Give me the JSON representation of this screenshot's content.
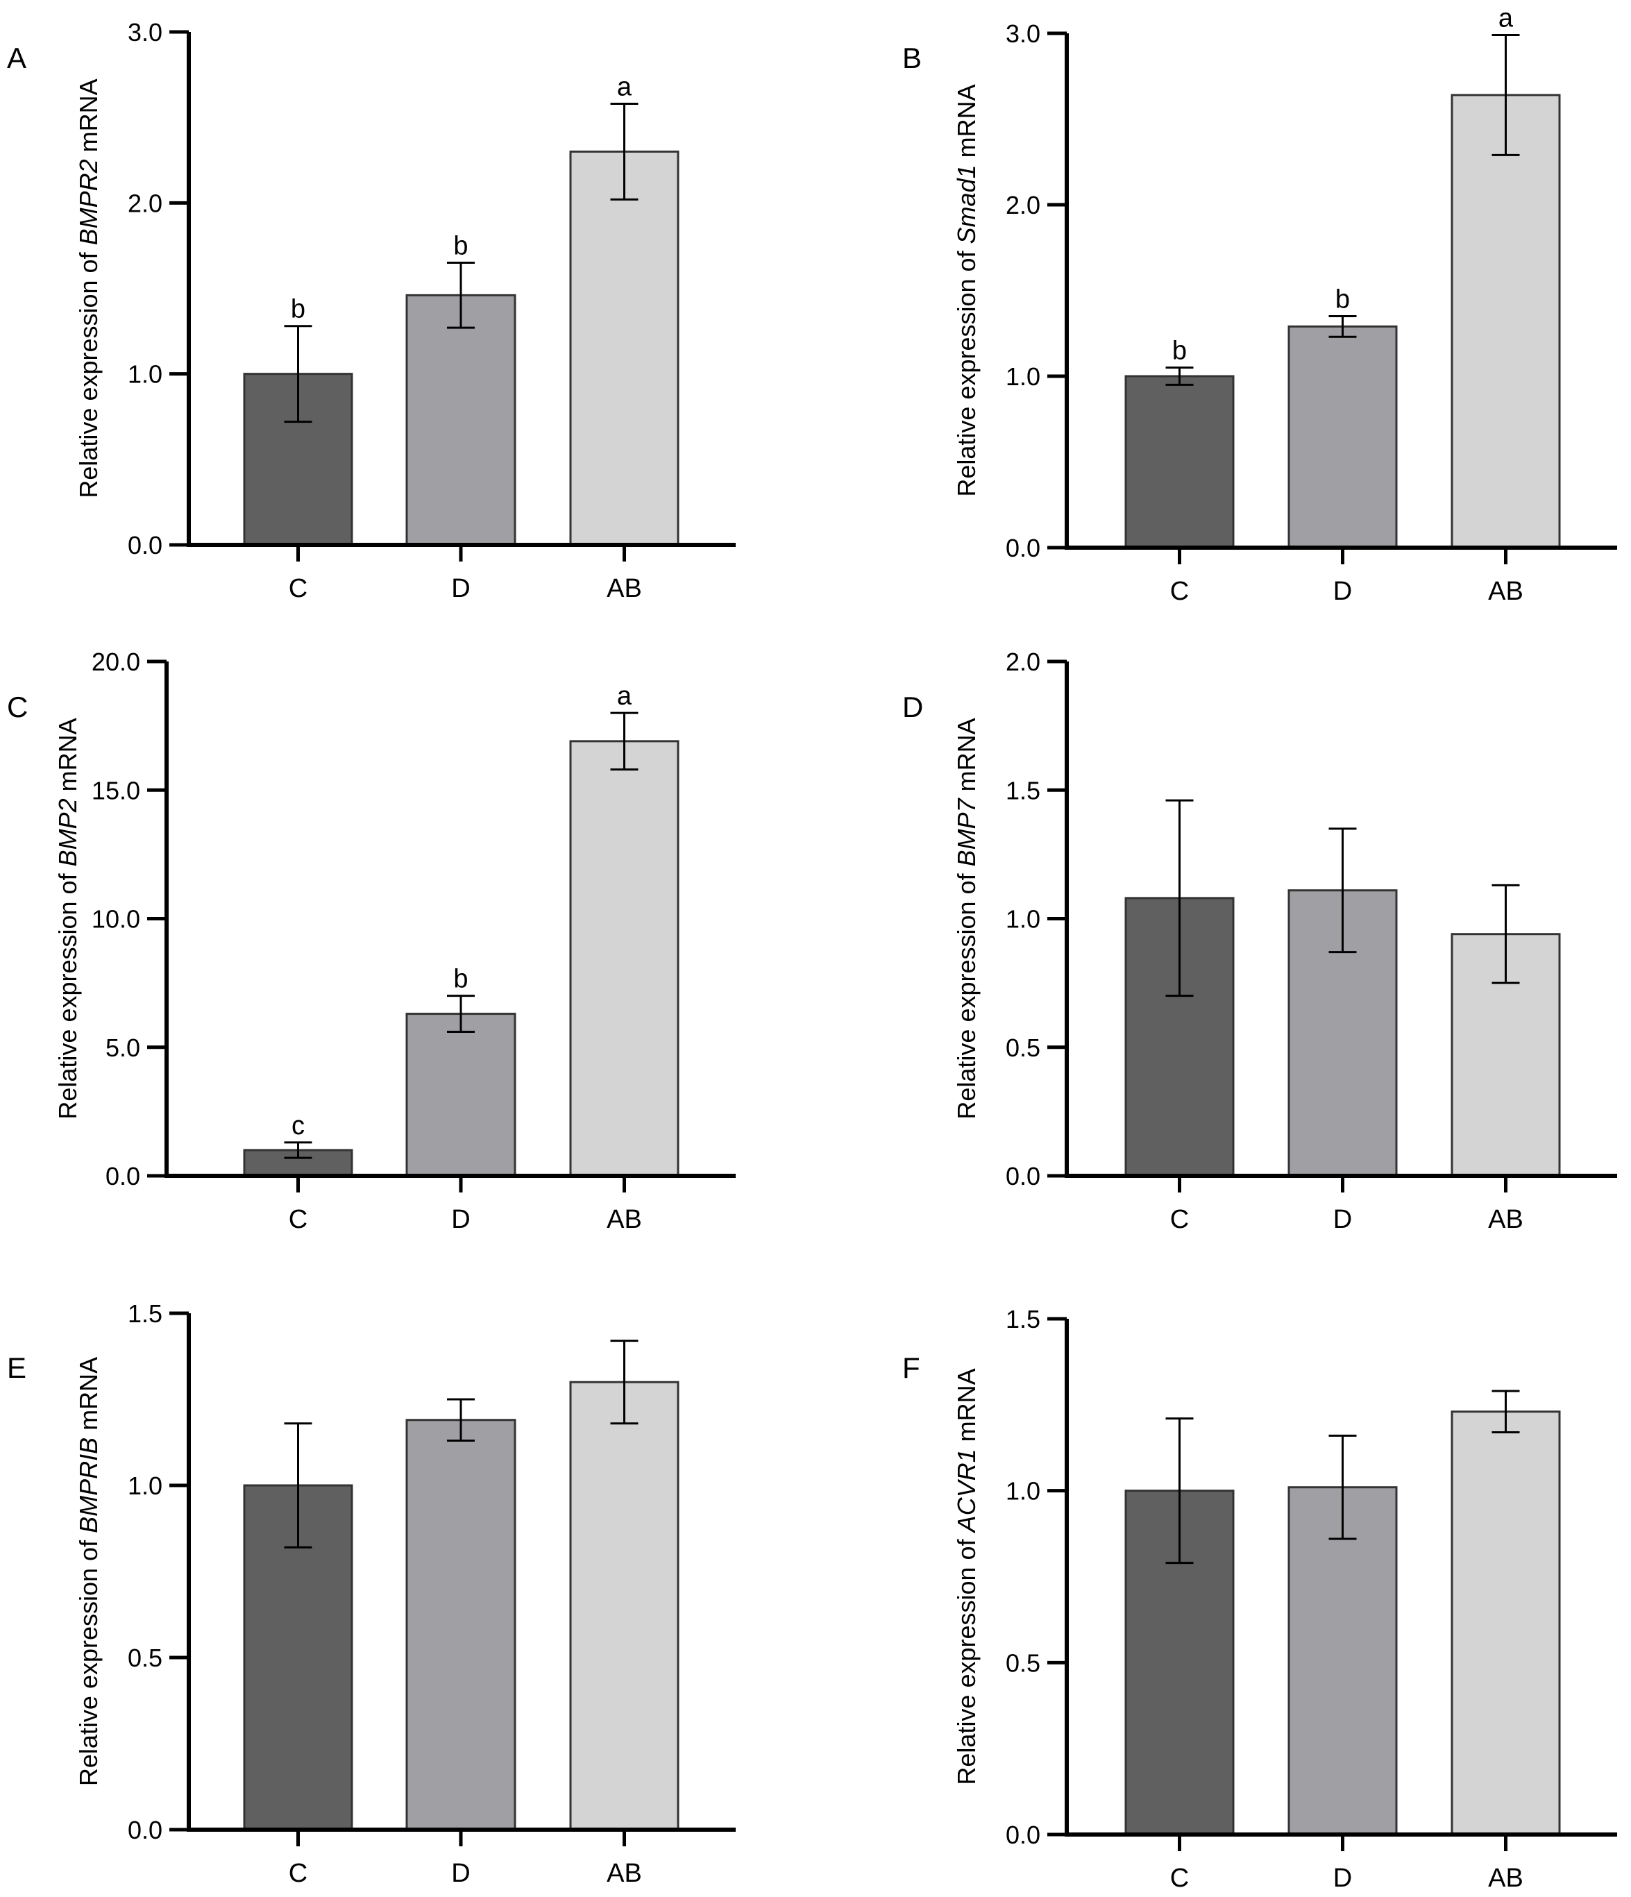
{
  "colors": {
    "C": "#606060",
    "D": "#a0a0a4",
    "AB": "#d4d4d4"
  },
  "chart_data": [
    {
      "type": "bar",
      "panel": "A",
      "ylabel": {
        "prefix": "Relative  expression of ",
        "gene": "BMPR2",
        "suffix": " mRNA"
      },
      "categories": [
        "C",
        "D",
        "AB"
      ],
      "values": [
        1.0,
        1.46,
        2.3
      ],
      "errors": [
        0.28,
        0.19,
        0.28
      ],
      "significance": [
        "b",
        "b",
        "a"
      ],
      "ylim": [
        0,
        3.0
      ],
      "yticks": [
        "0.0",
        "1.0",
        "2.0",
        "3.0"
      ]
    },
    {
      "type": "bar",
      "panel": "B",
      "ylabel": {
        "prefix": "Relative expression of ",
        "gene": "Smad1",
        "suffix": " mRNA"
      },
      "categories": [
        "C",
        "D",
        "AB"
      ],
      "values": [
        1.0,
        1.29,
        2.64
      ],
      "errors": [
        0.05,
        0.06,
        0.35
      ],
      "significance": [
        "b",
        "b",
        "a"
      ],
      "ylim": [
        0,
        3.0
      ],
      "yticks": [
        "0.0",
        "1.0",
        "2.0",
        "3.0"
      ]
    },
    {
      "type": "bar",
      "panel": "C",
      "ylabel": {
        "prefix": "Relative expression of ",
        "gene": "BMP2",
        "suffix": " mRNA"
      },
      "categories": [
        "C",
        "D",
        "AB"
      ],
      "values": [
        1.0,
        6.3,
        16.9
      ],
      "errors": [
        0.3,
        0.7,
        1.1
      ],
      "significance": [
        "c",
        "b",
        "a"
      ],
      "ylim": [
        0,
        20.0
      ],
      "yticks": [
        "0.0",
        "5.0",
        "10.0",
        "15.0",
        "20.0"
      ]
    },
    {
      "type": "bar",
      "panel": "D",
      "ylabel": {
        "prefix": "Relative expression of ",
        "gene": "BMP7",
        "suffix": " mRNA"
      },
      "categories": [
        "C",
        "D",
        "AB"
      ],
      "values": [
        1.08,
        1.11,
        0.94
      ],
      "errors": [
        0.38,
        0.24,
        0.19
      ],
      "significance": [
        "",
        "",
        ""
      ],
      "ylim": [
        0,
        2.0
      ],
      "yticks": [
        "0.0",
        "0.5",
        "1.0",
        "1.5",
        "2.0"
      ]
    },
    {
      "type": "bar",
      "panel": "E",
      "ylabel": {
        "prefix": "Relative expression of ",
        "gene": "BMPRIB",
        "suffix": " mRNA"
      },
      "categories": [
        "C",
        "D",
        "AB"
      ],
      "values": [
        1.0,
        1.19,
        1.3
      ],
      "errors": [
        0.18,
        0.06,
        0.12
      ],
      "significance": [
        "",
        "",
        ""
      ],
      "ylim": [
        0,
        1.5
      ],
      "yticks": [
        "0.0",
        "0.5",
        "1.0",
        "1.5"
      ]
    },
    {
      "type": "bar",
      "panel": "F",
      "ylabel": {
        "prefix": "Relative expression of ",
        "gene": "ACVR1",
        "suffix": " mRNA"
      },
      "categories": [
        "C",
        "D",
        "AB"
      ],
      "values": [
        1.0,
        1.01,
        1.23
      ],
      "errors": [
        0.21,
        0.15,
        0.06
      ],
      "significance": [
        "",
        "",
        ""
      ],
      "ylim": [
        0,
        1.5
      ],
      "yticks": [
        "0.0",
        "0.5",
        "1.0",
        "1.5"
      ]
    }
  ]
}
